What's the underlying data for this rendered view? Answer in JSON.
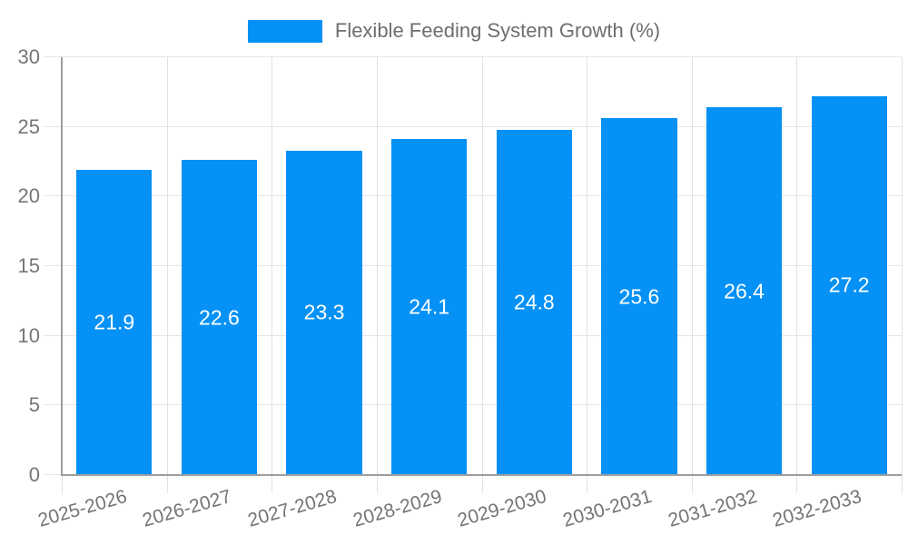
{
  "legend": {
    "label": "Flexible Feeding System Growth (%)"
  },
  "chart_data": {
    "type": "bar",
    "title": "Flexible Feeding System Growth (%)",
    "categories": [
      "2025-2026",
      "2026-2027",
      "2027-2028",
      "2028-2029",
      "2029-2030",
      "2030-2031",
      "2031-2032",
      "2032-2033"
    ],
    "values": [
      21.9,
      22.6,
      23.3,
      24.1,
      24.8,
      25.6,
      26.4,
      27.2
    ],
    "value_labels": [
      "21.9",
      "22.6",
      "23.3",
      "24.1",
      "24.8",
      "25.6",
      "26.4",
      "27.2"
    ],
    "xlabel": "",
    "ylabel": "",
    "ylim": [
      0,
      30
    ],
    "yticks": [
      0,
      5,
      10,
      15,
      20,
      25,
      30
    ],
    "grid": true,
    "legend_position": "top",
    "colors": {
      "bar": "#0591f5",
      "value_label": "#ffffff",
      "axis_line": "#9e9e9e",
      "gridline": "#e6e6e6",
      "tick_label": "#757575",
      "legend_text": "#6e6e6e"
    }
  }
}
